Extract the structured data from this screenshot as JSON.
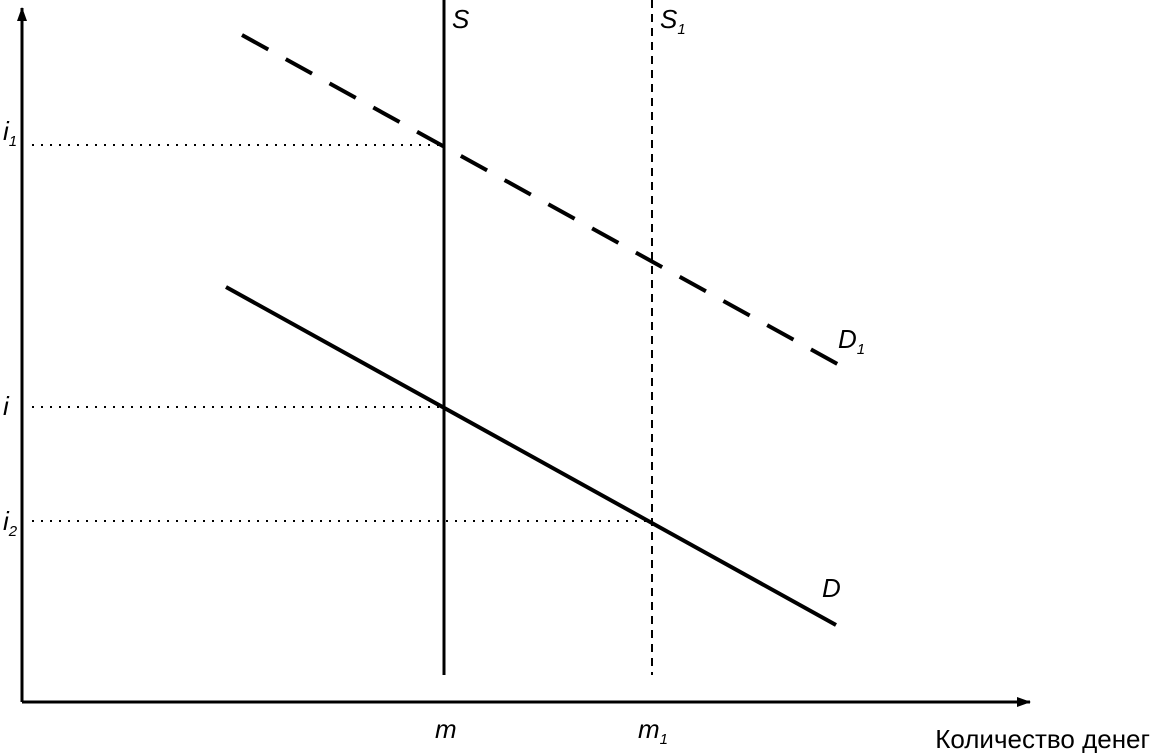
{
  "axes": {
    "x_title": "Количество денег"
  },
  "curves": {
    "S": {
      "name": "S"
    },
    "S1": {
      "name": "S",
      "sub": "1"
    },
    "D": {
      "name": "D"
    },
    "D1": {
      "name": "D",
      "sub": "1"
    }
  },
  "y_labels": {
    "i1": {
      "name": "i",
      "sub": "1"
    },
    "i": {
      "name": "i"
    },
    "i2": {
      "name": "i",
      "sub": "2"
    }
  },
  "x_labels": {
    "m": {
      "name": "m"
    },
    "m1": {
      "name": "m",
      "sub": "1"
    }
  }
}
